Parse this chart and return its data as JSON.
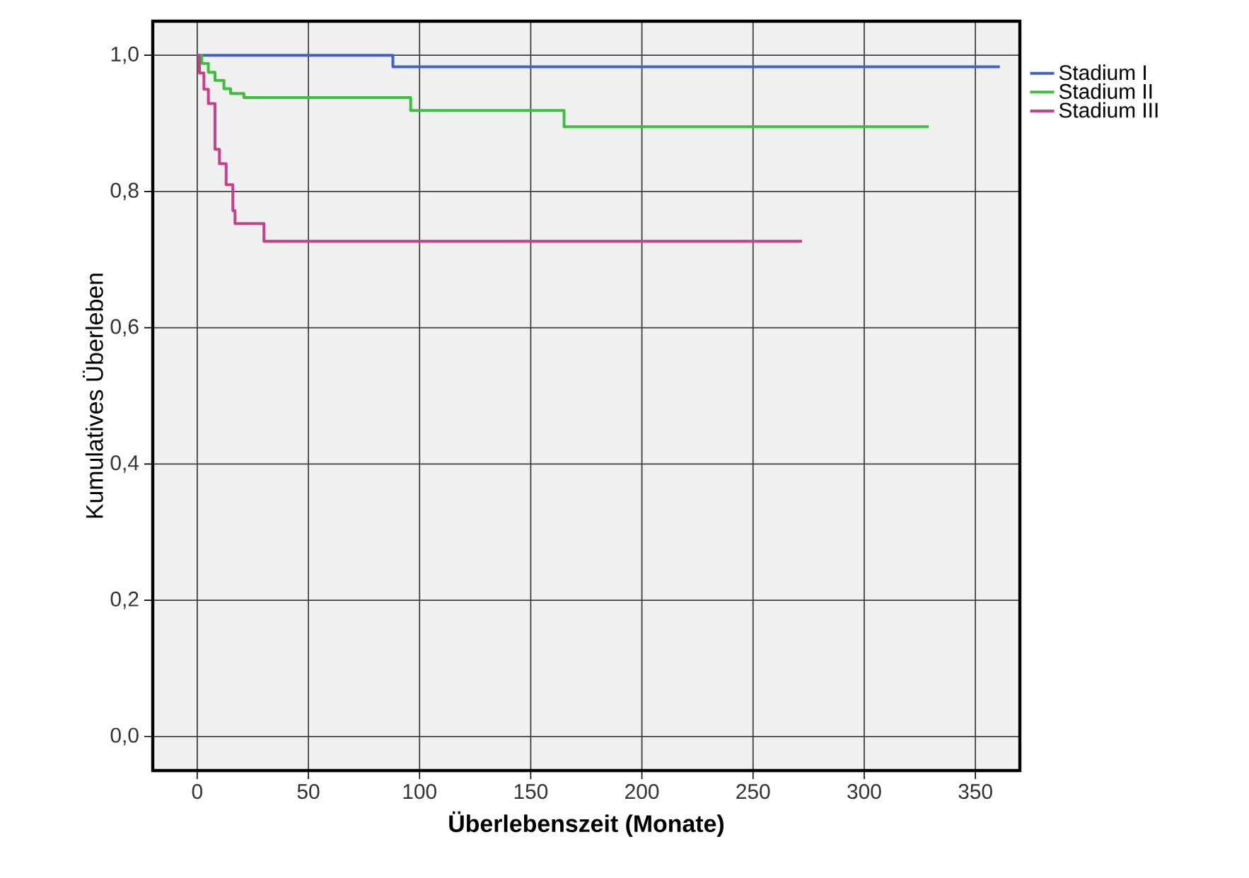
{
  "chart_data": {
    "type": "step",
    "xlabel": "Überlebenszeit (Monate)",
    "ylabel": "Kumulatives Überleben",
    "xlim": [
      -20,
      370
    ],
    "ylim": [
      -0.05,
      1.05
    ],
    "xticks": [
      0,
      50,
      100,
      150,
      200,
      250,
      300,
      350
    ],
    "yticks": [
      {
        "value": 0,
        "label": "0,0"
      },
      {
        "value": 0.2,
        "label": "0,2"
      },
      {
        "value": 0.4,
        "label": "0,4"
      },
      {
        "value": 0.6,
        "label": "0,6"
      },
      {
        "value": 0.8,
        "label": "0,8"
      },
      {
        "value": 1,
        "label": "1,0"
      }
    ],
    "grid": true,
    "legend": "top right",
    "marker": "none",
    "line_style": "solid",
    "series": [
      {
        "name": "Stadium I",
        "color": "#4262c0",
        "x": [
          0,
          88,
          361
        ],
        "values": [
          1,
          0.983,
          0.983
        ]
      },
      {
        "name": "Stadium II",
        "color": "#3cbf3c",
        "x": [
          0,
          2,
          5,
          8,
          12,
          15,
          21,
          96,
          165,
          329
        ],
        "values": [
          1,
          0.988,
          0.975,
          0.963,
          0.951,
          0.944,
          0.938,
          0.919,
          0.895,
          0.895
        ]
      },
      {
        "name": "Stadium III",
        "color": "#c8408a",
        "x": [
          0,
          1,
          3,
          5,
          8,
          10,
          13,
          16,
          17,
          30,
          272
        ],
        "values": [
          1,
          0.974,
          0.95,
          0.929,
          0.862,
          0.841,
          0.81,
          0.772,
          0.753,
          0.727,
          0.727
        ]
      }
    ]
  }
}
